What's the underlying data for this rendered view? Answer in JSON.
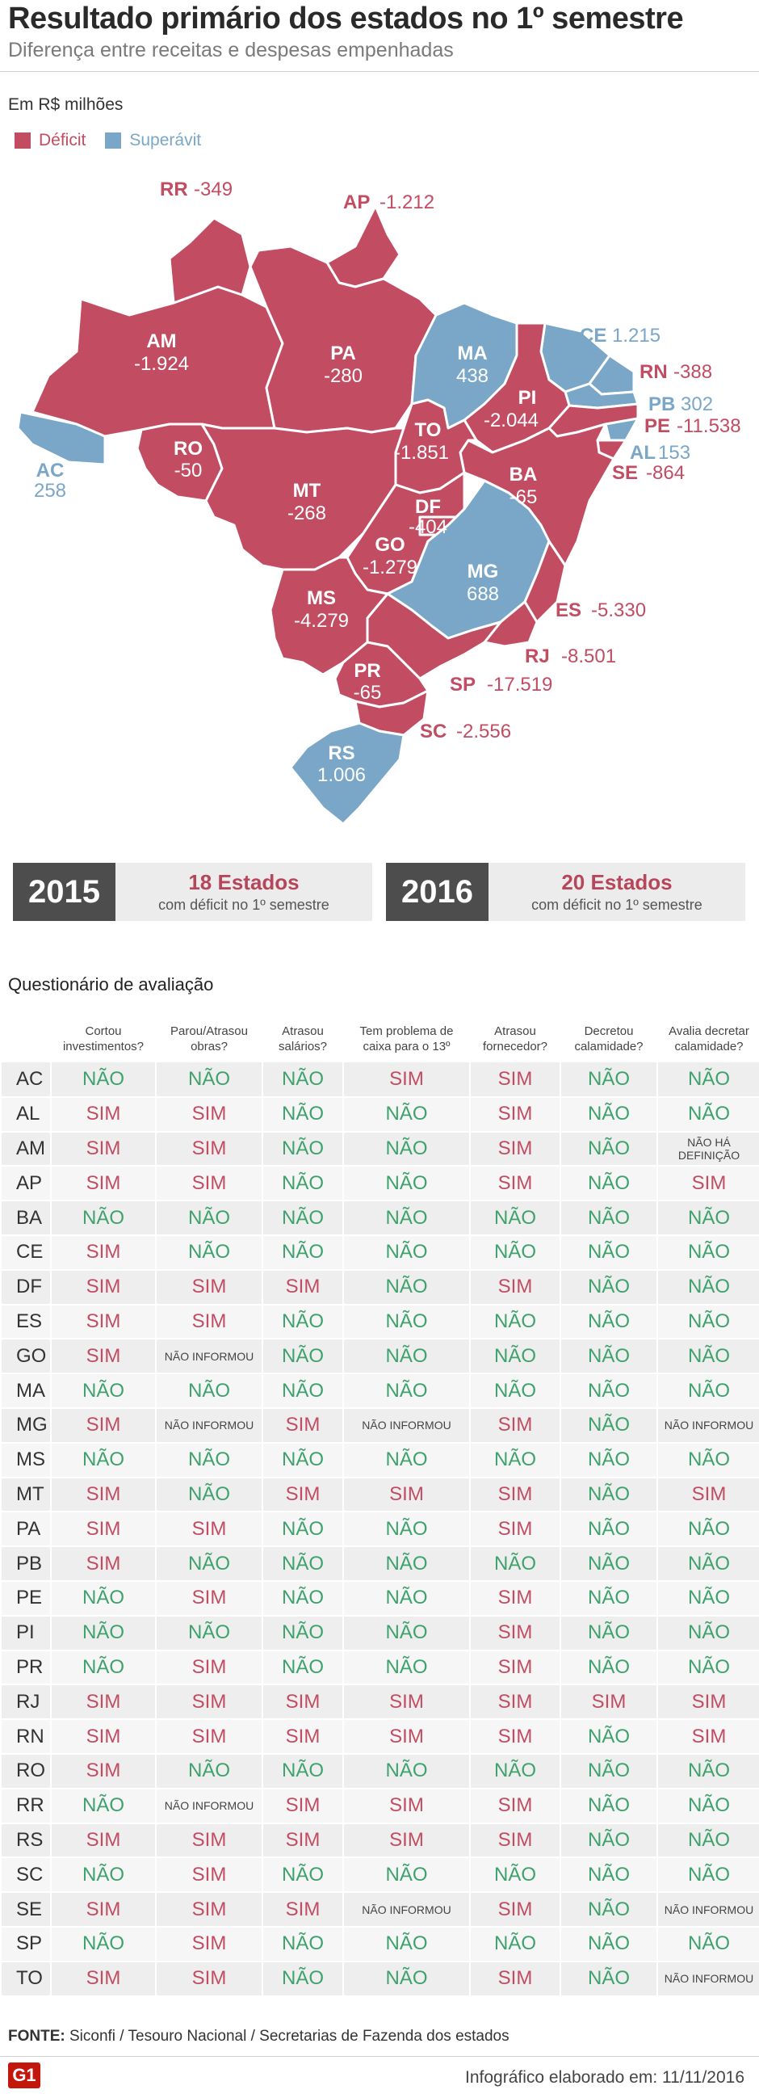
{
  "header": {
    "title": "Resultado primário dos estados no 1º semestre",
    "subtitle": "Diferença entre receitas e despesas empenhadas"
  },
  "units": "Em R$ milhões",
  "legend": [
    {
      "label": "Déficit",
      "color": "#c24d63"
    },
    {
      "label": "Superávit",
      "color": "#7aa7c7"
    }
  ],
  "colors": {
    "deficit": "#c24d63",
    "superavit": "#7aa7c7",
    "sim": "#c24d63",
    "nao": "#3fa26d"
  },
  "map_labels": {
    "RR": {
      "code": "RR",
      "value": "-349"
    },
    "AP": {
      "code": "AP",
      "value": "-1.212"
    },
    "AM": {
      "code": "AM",
      "value": "-1.924"
    },
    "PA": {
      "code": "PA",
      "value": "-280"
    },
    "MA": {
      "code": "MA",
      "value": "438"
    },
    "CE": {
      "code": "CE",
      "value": "1.215"
    },
    "RN": {
      "code": "RN",
      "value": "-388"
    },
    "PB": {
      "code": "PB",
      "value": "302"
    },
    "PE": {
      "code": "PE",
      "value": "-11.538"
    },
    "AL": {
      "code": "AL",
      "value": "153"
    },
    "SE": {
      "code": "SE",
      "value": "-864"
    },
    "PI": {
      "code": "PI",
      "value": "-2.044"
    },
    "AC": {
      "code": "AC",
      "value": "258"
    },
    "RO": {
      "code": "RO",
      "value": "-50"
    },
    "TO": {
      "code": "TO",
      "value": "-1.851"
    },
    "BA": {
      "code": "BA",
      "value": "-65"
    },
    "MT": {
      "code": "MT",
      "value": "-268"
    },
    "DF": {
      "code": "DF",
      "value": "-404"
    },
    "GO": {
      "code": "GO",
      "value": "-1.279"
    },
    "MG": {
      "code": "MG",
      "value": "688"
    },
    "MS": {
      "code": "MS",
      "value": "-4.279"
    },
    "ES": {
      "code": "ES",
      "value": "-5.330"
    },
    "RJ": {
      "code": "RJ",
      "value": "-8.501"
    },
    "SP": {
      "code": "SP",
      "value": "-17.519"
    },
    "PR": {
      "code": "PR",
      "value": "-65"
    },
    "SC": {
      "code": "SC",
      "value": "-2.556"
    },
    "RS": {
      "code": "RS",
      "value": "1.006"
    }
  },
  "summary": [
    {
      "year": "2015",
      "count": "18 Estados",
      "note": "com déficit no 1º semestre"
    },
    {
      "year": "2016",
      "count": "20 Estados",
      "note": "com déficit no 1º semestre"
    }
  ],
  "questionnaire": {
    "title": "Questionário de avaliação",
    "columns": [
      [
        "Cortou",
        "investimentos?"
      ],
      [
        "Parou/Atrasou",
        "obras?"
      ],
      [
        "Atrasou",
        "salários?"
      ],
      [
        "Tem problema de",
        "caixa para o 13º"
      ],
      [
        "Atrasou",
        "fornecedor?"
      ],
      [
        "Decretou",
        "calamidade?"
      ],
      [
        "Avalia decretar",
        "calamidade?"
      ]
    ],
    "rows": [
      {
        "state": "AC",
        "values": [
          "NÃO",
          "NÃO",
          "NÃO",
          "SIM",
          "SIM",
          "NÃO",
          "NÃO"
        ]
      },
      {
        "state": "AL",
        "values": [
          "SIM",
          "SIM",
          "NÃO",
          "NÃO",
          "SIM",
          "NÃO",
          "NÃO"
        ]
      },
      {
        "state": "AM",
        "values": [
          "SIM",
          "SIM",
          "NÃO",
          "NÃO",
          "SIM",
          "NÃO",
          "NÃO HÁ DEFINIÇÃO"
        ]
      },
      {
        "state": "AP",
        "values": [
          "SIM",
          "SIM",
          "NÃO",
          "NÃO",
          "SIM",
          "NÃO",
          "SIM"
        ]
      },
      {
        "state": "BA",
        "values": [
          "NÃO",
          "NÃO",
          "NÃO",
          "NÃO",
          "NÃO",
          "NÃO",
          "NÃO"
        ]
      },
      {
        "state": "CE",
        "values": [
          "SIM",
          "NÃO",
          "NÃO",
          "NÃO",
          "NÃO",
          "NÃO",
          "NÃO"
        ]
      },
      {
        "state": "DF",
        "values": [
          "SIM",
          "SIM",
          "SIM",
          "NÃO",
          "SIM",
          "NÃO",
          "NÃO"
        ]
      },
      {
        "state": "ES",
        "values": [
          "SIM",
          "SIM",
          "NÃO",
          "NÃO",
          "NÃO",
          "NÃO",
          "NÃO"
        ]
      },
      {
        "state": "GO",
        "values": [
          "SIM",
          "NÃO INFORMOU",
          "NÃO",
          "NÃO",
          "NÃO",
          "NÃO",
          "NÃO"
        ]
      },
      {
        "state": "MA",
        "values": [
          "NÃO",
          "NÃO",
          "NÃO",
          "NÃO",
          "NÃO",
          "NÃO",
          "NÃO"
        ]
      },
      {
        "state": "MG",
        "values": [
          "SIM",
          "NÃO INFORMOU",
          "SIM",
          "NÃO INFORMOU",
          "SIM",
          "NÃO",
          "NÃO INFORMOU"
        ]
      },
      {
        "state": "MS",
        "values": [
          "NÃO",
          "NÃO",
          "NÃO",
          "NÃO",
          "NÃO",
          "NÃO",
          "NÃO"
        ]
      },
      {
        "state": "MT",
        "values": [
          "SIM",
          "NÃO",
          "SIM",
          "SIM",
          "SIM",
          "NÃO",
          "SIM"
        ]
      },
      {
        "state": "PA",
        "values": [
          "SIM",
          "SIM",
          "NÃO",
          "NÃO",
          "SIM",
          "NÃO",
          "NÃO"
        ]
      },
      {
        "state": "PB",
        "values": [
          "SIM",
          "NÃO",
          "NÃO",
          "NÃO",
          "NÃO",
          "NÃO",
          "NÃO"
        ]
      },
      {
        "state": "PE",
        "values": [
          "NÃO",
          "SIM",
          "NÃO",
          "NÃO",
          "SIM",
          "NÃO",
          "NÃO"
        ]
      },
      {
        "state": "PI",
        "values": [
          "NÃO",
          "NÃO",
          "NÃO",
          "NÃO",
          "SIM",
          "NÃO",
          "NÃO"
        ]
      },
      {
        "state": "PR",
        "values": [
          "NÃO",
          "SIM",
          "NÃO",
          "NÃO",
          "SIM",
          "NÃO",
          "NÃO"
        ]
      },
      {
        "state": "RJ",
        "values": [
          "SIM",
          "SIM",
          "SIM",
          "SIM",
          "SIM",
          "SIM",
          "SIM"
        ]
      },
      {
        "state": "RN",
        "values": [
          "SIM",
          "SIM",
          "SIM",
          "SIM",
          "SIM",
          "NÃO",
          "SIM"
        ]
      },
      {
        "state": "RO",
        "values": [
          "SIM",
          "NÃO",
          "NÃO",
          "NÃO",
          "NÃO",
          "NÃO",
          "NÃO"
        ]
      },
      {
        "state": "RR",
        "values": [
          "NÃO",
          "NÃO INFORMOU",
          "SIM",
          "SIM",
          "SIM",
          "NÃO",
          "NÃO"
        ]
      },
      {
        "state": "RS",
        "values": [
          "SIM",
          "SIM",
          "SIM",
          "SIM",
          "SIM",
          "NÃO",
          "NÃO"
        ]
      },
      {
        "state": "SC",
        "values": [
          "NÃO",
          "SIM",
          "NÃO",
          "NÃO",
          "NÃO",
          "NÃO",
          "NÃO"
        ]
      },
      {
        "state": "SE",
        "values": [
          "SIM",
          "SIM",
          "SIM",
          "NÃO INFORMOU",
          "SIM",
          "NÃO",
          "NÃO INFORMOU"
        ]
      },
      {
        "state": "SP",
        "values": [
          "NÃO",
          "SIM",
          "NÃO",
          "NÃO",
          "NÃO",
          "NÃO",
          "NÃO"
        ]
      },
      {
        "state": "TO",
        "values": [
          "SIM",
          "SIM",
          "NÃO",
          "NÃO",
          "SIM",
          "NÃO",
          "NÃO INFORMOU"
        ]
      }
    ]
  },
  "footer": {
    "source_label": "FONTE:",
    "source": "Siconfi / Tesouro Nacional / Secretarias de Fazenda dos estados",
    "logo": "G1",
    "credit": "Infográfico elaborado em: 11/11/2016"
  }
}
